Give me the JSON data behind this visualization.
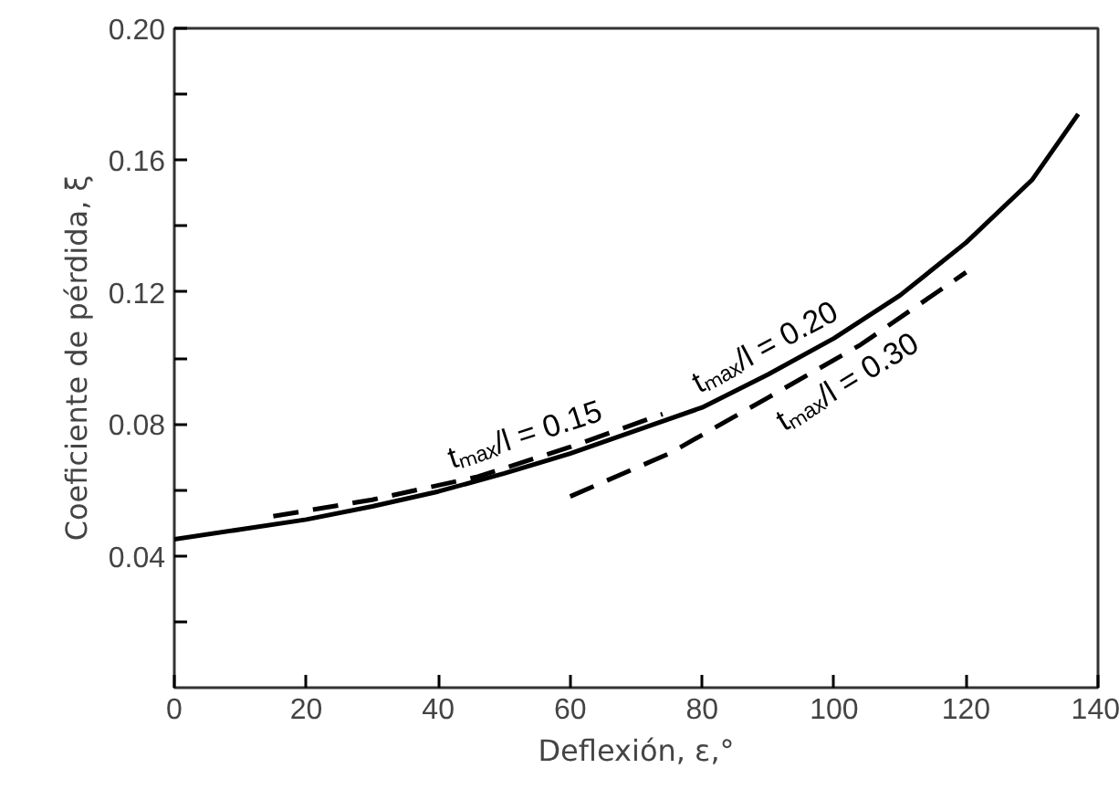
{
  "chart_data": {
    "type": "line",
    "xlabel": "Deflexión, ε,°",
    "ylabel": "Coeficiente de pérdida, ξ",
    "xlim": [
      0,
      140
    ],
    "xticks": [
      0,
      20,
      40,
      60,
      80,
      100,
      120,
      140
    ],
    "ylim": [
      0,
      0.2
    ],
    "yticks": [
      {
        "value": 0.02,
        "label": null
      },
      0.04,
      {
        "value": 0.06,
        "label": null
      },
      0.08,
      {
        "value": 0.1,
        "label": null
      },
      0.12,
      {
        "value": 0.14,
        "label": null
      },
      0.16,
      {
        "value": 0.18,
        "label": null
      },
      {
        "value": 0.2,
        "label": "0.20"
      }
    ],
    "grid": false,
    "series": [
      {
        "name": "tₘₐₓ/l = 0.15",
        "color": "#000000",
        "line_style": "dashed",
        "x": [
          15,
          30,
          46,
          60,
          74
        ],
        "values": [
          0.052,
          0.057,
          0.064,
          0.073,
          0.083
        ]
      },
      {
        "name": "tₘₐₓ/l = 0.20",
        "color": "#000000",
        "line_style": "solid",
        "x": [
          0,
          10,
          20,
          30,
          40,
          50,
          60,
          70,
          80,
          90,
          100,
          110,
          120,
          130,
          137
        ],
        "values": [
          0.045,
          0.048,
          0.051,
          0.055,
          0.0595,
          0.065,
          0.071,
          0.078,
          0.085,
          0.095,
          0.106,
          0.119,
          0.135,
          0.154,
          0.174
        ]
      },
      {
        "name": "tₘₐₓ/l = 0.30",
        "color": "#000000",
        "line_style": "dashed",
        "x": [
          60,
          75,
          90,
          104,
          120
        ],
        "values": [
          0.058,
          0.071,
          0.088,
          0.104,
          0.126
        ]
      }
    ]
  }
}
